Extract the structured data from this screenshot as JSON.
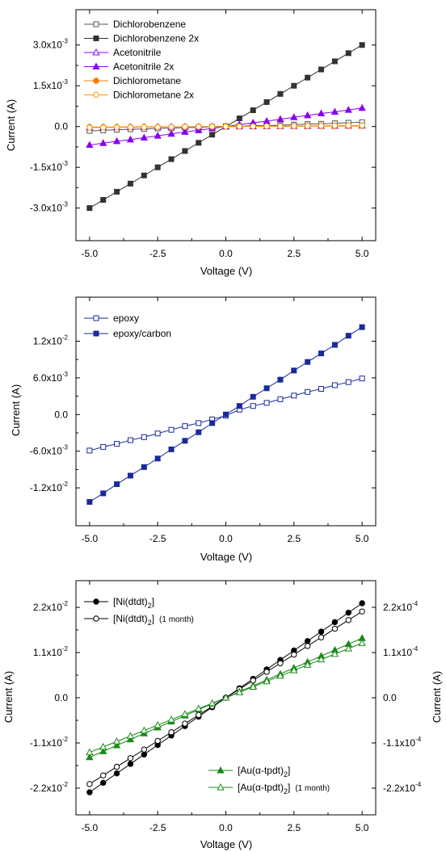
{
  "chart_data": [
    {
      "type": "line",
      "xlabel": "Voltage (V)",
      "ylabel": "Current (A)",
      "xlim": [
        -5.5,
        5.5
      ],
      "ylim": [
        -0.0042,
        0.0043
      ],
      "legend_position": "top-left",
      "x_ticks": [
        {
          "value": -5,
          "label": "-5.0"
        },
        {
          "value": -2.5,
          "label": "-2.5"
        },
        {
          "value": 0,
          "label": "0.0"
        },
        {
          "value": 2.5,
          "label": "2.5"
        },
        {
          "value": 5,
          "label": "5.0"
        }
      ],
      "y_ticks": [
        {
          "value": 0.003,
          "mantissa": "3.0x10",
          "exp": "-3"
        },
        {
          "value": 0.0015,
          "mantissa": "1.5x10",
          "exp": "-3"
        },
        {
          "value": 0,
          "mantissa": "0.0",
          "exp": ""
        },
        {
          "value": -0.0015,
          "mantissa": "-1.5x10",
          "exp": "-3"
        },
        {
          "value": -0.003,
          "mantissa": "-3.0x10",
          "exp": "-3"
        }
      ],
      "x": [
        -5,
        -4.5,
        -4,
        -3.5,
        -3,
        -2.5,
        -2,
        -1.5,
        -1,
        -0.5,
        0,
        0.5,
        1,
        1.5,
        2,
        2.5,
        3,
        3.5,
        4,
        4.5,
        5
      ],
      "series": [
        {
          "name": "Dichlorobenzene",
          "color": "#555555",
          "marker": "square-open",
          "values": [
            -0.00016,
            -0.00014,
            -0.00012,
            -0.0001,
            -9e-05,
            -7e-05,
            -6e-05,
            -4e-05,
            -3e-05,
            -1e-05,
            0,
            1e-05,
            3e-05,
            4e-05,
            5e-05,
            7e-05,
            9e-05,
            0.0001,
            0.00012,
            0.00014,
            0.00016
          ]
        },
        {
          "name": "Dichlorobenzene 2x",
          "color": "#333333",
          "marker": "square-filled",
          "values": [
            -0.003,
            -0.0027,
            -0.0024,
            -0.0021,
            -0.0018,
            -0.0015,
            -0.0012,
            -0.0009,
            -0.0006,
            -0.0003,
            0,
            0.0003,
            0.0006,
            0.0009,
            0.0012,
            0.0015,
            0.0018,
            0.0021,
            0.0024,
            0.0027,
            0.003
          ]
        },
        {
          "name": "Acetonitrile",
          "color": "#9900ff",
          "marker": "triangle-open",
          "values": [
            -3e-05,
            -2.7e-05,
            -2.4e-05,
            -2.1e-05,
            -1.8e-05,
            -1.5e-05,
            -1.2e-05,
            -9e-06,
            -6e-06,
            -3e-06,
            0,
            3e-06,
            6e-06,
            9e-06,
            1.2e-05,
            1.5e-05,
            1.8e-05,
            2.1e-05,
            2.4e-05,
            2.7e-05,
            3e-05
          ]
        },
        {
          "name": "Acetonitrile 2x",
          "color": "#8800ee",
          "marker": "triangle-filled",
          "values": [
            -0.00068,
            -0.00061,
            -0.00054,
            -0.00048,
            -0.00041,
            -0.00034,
            -0.00027,
            -0.0002,
            -0.00014,
            -7e-05,
            0,
            7e-05,
            0.00014,
            0.0002,
            0.00027,
            0.00034,
            0.00041,
            0.00048,
            0.00054,
            0.00061,
            0.00068
          ]
        },
        {
          "name": "Dichlorometane",
          "color": "#ff7700",
          "marker": "circle-filled",
          "values": [
            -2e-05,
            -1.8e-05,
            -1.6e-05,
            -1.4e-05,
            -1.2e-05,
            -1e-05,
            -8e-06,
            -6e-06,
            -4e-06,
            -2e-06,
            0,
            2e-06,
            4e-06,
            6e-06,
            8e-06,
            1e-05,
            1.2e-05,
            1.4e-05,
            1.6e-05,
            1.8e-05,
            2e-05
          ]
        },
        {
          "name": "Dichlorometane 2x",
          "color": "#ff9900",
          "marker": "circle-open",
          "values": [
            -4e-05,
            -3.6e-05,
            -3.2e-05,
            -2.8e-05,
            -2.4e-05,
            -2e-05,
            -1.6e-05,
            -1.2e-05,
            -8e-06,
            -4e-06,
            0,
            4e-06,
            8e-06,
            1.2e-05,
            1.6e-05,
            2e-05,
            2.4e-05,
            2.8e-05,
            3.2e-05,
            3.6e-05,
            4e-05
          ]
        }
      ]
    },
    {
      "type": "line",
      "xlabel": "Voltage (V)",
      "ylabel": "Current (A)",
      "xlim": [
        -5.5,
        5.5
      ],
      "ylim": [
        -0.0182,
        0.0192
      ],
      "legend_position": "top-left",
      "x_ticks": [
        {
          "value": -5,
          "label": "-5.0"
        },
        {
          "value": -2.5,
          "label": "-2.5"
        },
        {
          "value": 0,
          "label": "0.0"
        },
        {
          "value": 2.5,
          "label": "2.5"
        },
        {
          "value": 5,
          "label": "5.0"
        }
      ],
      "y_ticks": [
        {
          "value": 0.012,
          "mantissa": "1.2x10",
          "exp": "-2"
        },
        {
          "value": 0.006,
          "mantissa": "6.0x10",
          "exp": "-3"
        },
        {
          "value": 0,
          "mantissa": "0.0",
          "exp": ""
        },
        {
          "value": -0.006,
          "mantissa": "-6.0x10",
          "exp": "-3"
        },
        {
          "value": -0.012,
          "mantissa": "-1.2x10",
          "exp": "-2"
        }
      ],
      "x": [
        -5,
        -4.5,
        -4,
        -3.5,
        -3,
        -2.5,
        -2,
        -1.5,
        -1,
        -0.5,
        0,
        0.5,
        1,
        1.5,
        2,
        2.5,
        3,
        3.5,
        4,
        4.5,
        5
      ],
      "series": [
        {
          "name": "epoxy",
          "color": "#1a2a9a",
          "marker": "square-open",
          "values": [
            -0.0059,
            -0.0053,
            -0.0048,
            -0.0042,
            -0.0037,
            -0.0031,
            -0.0025,
            -0.0019,
            -0.0014,
            -0.0008,
            -0.0002,
            0.0008,
            0.0014,
            0.0019,
            0.0025,
            0.0031,
            0.0037,
            0.0042,
            0.0048,
            0.0053,
            0.0059
          ]
        },
        {
          "name": "epoxy/carbon",
          "color": "#1a2a9a",
          "marker": "square-filled",
          "values": [
            -0.0143,
            -0.0129,
            -0.0114,
            -0.01,
            -0.0086,
            -0.0072,
            -0.0057,
            -0.0043,
            -0.0029,
            -0.0014,
            0,
            0.0014,
            0.0029,
            0.0043,
            0.0057,
            0.0072,
            0.0086,
            0.01,
            0.0114,
            0.0129,
            0.0143
          ]
        }
      ]
    },
    {
      "type": "line",
      "xlabel": "Voltage (V)",
      "ylabel": "Current (A)",
      "ylabel_right": "Current (A)",
      "xlim": [
        -5.5,
        5.5
      ],
      "ylim": [
        -0.0285,
        0.0285
      ],
      "ylim_right": [
        -0.000285,
        0.000285
      ],
      "legend_position": "top-left and bottom-right",
      "x_ticks": [
        {
          "value": -5,
          "label": "-5.0"
        },
        {
          "value": -2.5,
          "label": "-2.5"
        },
        {
          "value": 0,
          "label": "0.0"
        },
        {
          "value": 2.5,
          "label": "2.5"
        },
        {
          "value": 5,
          "label": "5.0"
        }
      ],
      "y_ticks": [
        {
          "value": 0.022,
          "mantissa": "2.2x10",
          "exp": "-2"
        },
        {
          "value": 0.011,
          "mantissa": "1.1x10",
          "exp": "-2"
        },
        {
          "value": 0,
          "mantissa": "0.0",
          "exp": ""
        },
        {
          "value": -0.011,
          "mantissa": "-1.1x10",
          "exp": "-2"
        },
        {
          "value": -0.022,
          "mantissa": "-2.2x10",
          "exp": "-2"
        }
      ],
      "y_ticks_right": [
        {
          "value": 0.00022,
          "mantissa": "2.2x10",
          "exp": "-4"
        },
        {
          "value": 0.00011,
          "mantissa": "1.1x10",
          "exp": "-4"
        },
        {
          "value": 0,
          "mantissa": "0.0",
          "exp": ""
        },
        {
          "value": -0.00011,
          "mantissa": "-1.1x10",
          "exp": "-4"
        },
        {
          "value": -0.00022,
          "mantissa": "-2.2x10",
          "exp": "-4"
        }
      ],
      "right_axis_color": "#1a8a1a",
      "x": [
        -5,
        -4.5,
        -4,
        -3.5,
        -3,
        -2.5,
        -2,
        -1.5,
        -1,
        -0.5,
        0,
        0.5,
        1,
        1.5,
        2,
        2.5,
        3,
        3.5,
        4,
        4.5,
        5
      ],
      "series": [
        {
          "name": "[Ni(dtdt)2]",
          "label_main": "[Ni(dtdt)",
          "label_sub": "2",
          "label_tail": "]",
          "label_note": "",
          "color": "#000000",
          "marker": "circle-filled",
          "axis": "left",
          "values": [
            -0.023,
            -0.0207,
            -0.0184,
            -0.0161,
            -0.0138,
            -0.0115,
            -0.0092,
            -0.0069,
            -0.0046,
            -0.0023,
            0,
            0.0023,
            0.0046,
            0.0069,
            0.0092,
            0.0115,
            0.0138,
            0.0161,
            0.0184,
            0.0207,
            0.023
          ]
        },
        {
          "name": "[Ni(dtdt)2] (1 month)",
          "label_main": "[Ni(dtdt)",
          "label_sub": "2",
          "label_tail": "]",
          "label_note": "(1 month)",
          "color": "#000000",
          "marker": "circle-open",
          "axis": "left",
          "values": [
            -0.021,
            -0.0189,
            -0.0168,
            -0.0147,
            -0.0126,
            -0.0105,
            -0.0084,
            -0.0063,
            -0.0042,
            -0.0021,
            0,
            0.0021,
            0.0042,
            0.0063,
            0.0084,
            0.0105,
            0.0126,
            0.0147,
            0.0168,
            0.0189,
            0.021
          ]
        },
        {
          "name": "[Au(α-tpdt)2]",
          "label_main": "[Au(α-tpdt)",
          "label_sub": "2",
          "label_tail": "]",
          "label_note": "",
          "color": "#1a8a1a",
          "marker": "triangle-filled",
          "axis": "right",
          "values": [
            -0.000145,
            -0.0001305,
            -0.000116,
            -0.0001015,
            -8.7e-05,
            -7.25e-05,
            -5.8e-05,
            -4.35e-05,
            -2.9e-05,
            -1.45e-05,
            0,
            1.45e-05,
            2.9e-05,
            4.35e-05,
            5.8e-05,
            7.25e-05,
            8.7e-05,
            0.0001015,
            0.000116,
            0.0001305,
            0.000145
          ]
        },
        {
          "name": "[Au(α-tpdt)2] (1 month)",
          "label_main": "[Au(α-tpdt)",
          "label_sub": "2",
          "label_tail": "]",
          "label_note": "(1 month)",
          "color": "#1a8a1a",
          "marker": "triangle-open",
          "axis": "right",
          "values": [
            -0.000133,
            -0.0001197,
            -0.0001064,
            -9.31e-05,
            -7.98e-05,
            -6.65e-05,
            -5.32e-05,
            -3.99e-05,
            -2.66e-05,
            -1.33e-05,
            0,
            1.33e-05,
            2.66e-05,
            3.99e-05,
            5.32e-05,
            6.65e-05,
            7.98e-05,
            9.31e-05,
            0.0001064,
            0.0001197,
            0.000133
          ]
        }
      ]
    }
  ]
}
